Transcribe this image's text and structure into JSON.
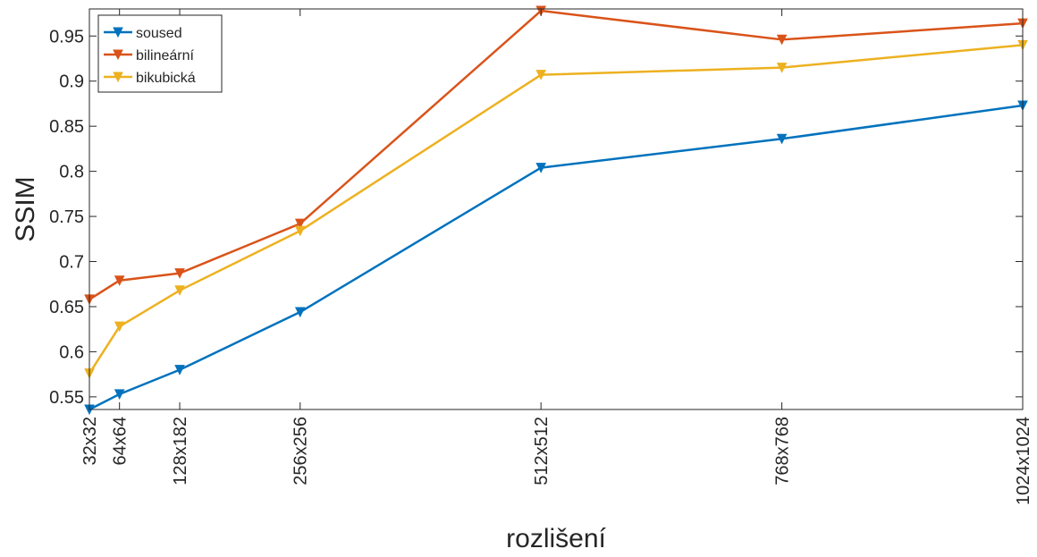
{
  "chart_data": {
    "type": "line",
    "title": "",
    "xlabel": "rozlišení",
    "ylabel": "SSIM",
    "x": [
      32,
      64,
      128,
      256,
      512,
      768,
      1024
    ],
    "x_tick_labels": [
      "32x32",
      "64x64",
      "128x182",
      "256x256",
      "512x512",
      "768x768",
      "1024x1024"
    ],
    "ylim": [
      0.536,
      0.98
    ],
    "y_ticks": [
      0.55,
      0.6,
      0.65,
      0.7,
      0.75,
      0.8,
      0.85,
      0.9,
      0.95
    ],
    "y_tick_labels": [
      "0.55",
      "0.6",
      "0.65",
      "0.7",
      "0.75",
      "0.8",
      "0.85",
      "0.9",
      "0.95"
    ],
    "grid": false,
    "legend_position": "top-left",
    "marker": "down-triangle",
    "series": [
      {
        "name": "soused",
        "color": "#0072BD",
        "values": [
          0.536,
          0.553,
          0.58,
          0.644,
          0.804,
          0.836,
          0.873
        ]
      },
      {
        "name": "bilineární",
        "color": "#D95319",
        "values": [
          0.658,
          0.679,
          0.687,
          0.742,
          0.978,
          0.946,
          0.964
        ]
      },
      {
        "name": "bikubická",
        "color": "#EDB120",
        "values": [
          0.576,
          0.628,
          0.668,
          0.734,
          0.907,
          0.915,
          0.94
        ]
      }
    ]
  }
}
